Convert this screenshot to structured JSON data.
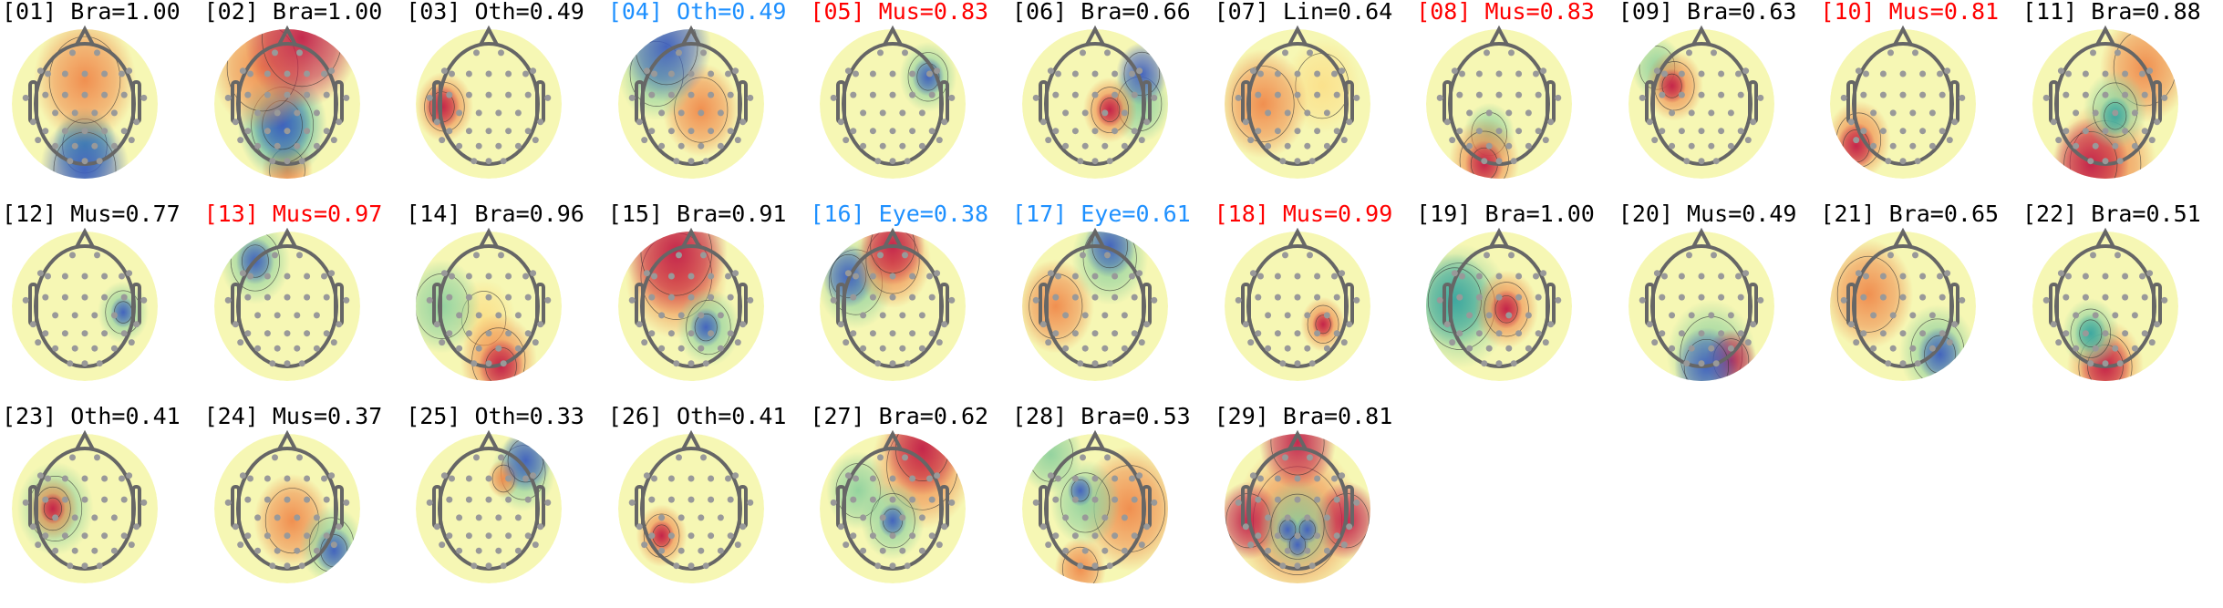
{
  "colors": {
    "default": "#000000",
    "muscle_highlight": "#ff0000",
    "eye_highlight": "#1e90ff"
  },
  "components": [
    {
      "label": "[01] Bra=1.00",
      "color": "#000000"
    },
    {
      "label": "[02] Bra=1.00",
      "color": "#000000"
    },
    {
      "label": "[03] Oth=0.49",
      "color": "#000000"
    },
    {
      "label": "[04] Oth=0.49",
      "color": "#1e90ff"
    },
    {
      "label": "[05] Mus=0.83",
      "color": "#ff0000"
    },
    {
      "label": "[06] Bra=0.66",
      "color": "#000000"
    },
    {
      "label": "[07] Lin=0.64",
      "color": "#000000"
    },
    {
      "label": "[08] Mus=0.83",
      "color": "#ff0000"
    },
    {
      "label": "[09] Bra=0.63",
      "color": "#000000"
    },
    {
      "label": "[10] Mus=0.81",
      "color": "#ff0000"
    },
    {
      "label": "[11] Bra=0.88",
      "color": "#000000"
    },
    {
      "label": "[12] Mus=0.77",
      "color": "#000000"
    },
    {
      "label": "[13] Mus=0.97",
      "color": "#ff0000"
    },
    {
      "label": "[14] Bra=0.96",
      "color": "#000000"
    },
    {
      "label": "[15] Bra=0.91",
      "color": "#000000"
    },
    {
      "label": "[16] Eye=0.38",
      "color": "#1e90ff"
    },
    {
      "label": "[17] Eye=0.61",
      "color": "#1e90ff"
    },
    {
      "label": "[18] Mus=0.99",
      "color": "#ff0000"
    },
    {
      "label": "[19] Bra=1.00",
      "color": "#000000"
    },
    {
      "label": "[20] Mus=0.49",
      "color": "#000000"
    },
    {
      "label": "[21] Bra=0.65",
      "color": "#000000"
    },
    {
      "label": "[22] Bra=0.51",
      "color": "#000000"
    },
    {
      "label": "[23] Oth=0.41",
      "color": "#000000"
    },
    {
      "label": "[24] Mus=0.37",
      "color": "#000000"
    },
    {
      "label": "[25] Oth=0.33",
      "color": "#000000"
    },
    {
      "label": "[26] Oth=0.41",
      "color": "#000000"
    },
    {
      "label": "[27] Bra=0.62",
      "color": "#000000"
    },
    {
      "label": "[28] Bra=0.53",
      "color": "#000000"
    },
    {
      "label": "[29] Bra=0.81",
      "color": "#000000"
    }
  ]
}
